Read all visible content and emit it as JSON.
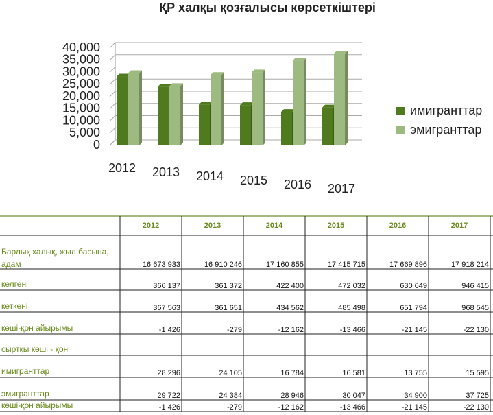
{
  "chart_data": {
    "type": "bar",
    "title": "ҚР халқы қозғалысы көрсеткіштері",
    "categories": [
      "2012",
      "2013",
      "2014",
      "2015",
      "2016",
      "2017"
    ],
    "series": [
      {
        "name": "имигранттар",
        "color": "#4f7a1e",
        "values": [
          28296,
          24105,
          16784,
          16581,
          13755,
          15595
        ]
      },
      {
        "name": "эмигранттар",
        "color": "#9dbb80",
        "values": [
          29722,
          24384,
          28946,
          30047,
          34900,
          37725
        ]
      }
    ],
    "ylim": [
      0,
      40000
    ],
    "yticks": [
      0,
      {
        "value": 5000,
        "label": "5,000"
      },
      {
        "value": 10000,
        "label": "10,000"
      },
      {
        "value": 15000,
        "label": "15,000"
      },
      {
        "value": 20000,
        "label": "20,000"
      },
      {
        "value": 25000,
        "label": "25,000"
      },
      {
        "value": 30000,
        "label": "30,000"
      },
      {
        "value": 35000,
        "label": "35,000"
      },
      {
        "value": 40000,
        "label": "40,000"
      }
    ],
    "grid": true,
    "legend": "right"
  },
  "table": {
    "header": [
      "2012",
      "2013",
      "2014",
      "2015",
      "2016",
      "2017"
    ],
    "rows": [
      {
        "label": "Барлық халық, жыл басына, адам",
        "values": [
          "16 673 933",
          "16 910 246",
          "17 160 855",
          "17 415 715",
          "17 669 896",
          "17 918 214"
        ]
      },
      {
        "label": "келгені",
        "values": [
          "366 137",
          "361 372",
          "422 400",
          "472 032",
          "630 649",
          "946 415"
        ]
      },
      {
        "label": "кеткені",
        "values": [
          "367 563",
          "361 651",
          "434 562",
          "485 498",
          "651 794",
          "968 545"
        ]
      },
      {
        "label": "көші-қон айырымы",
        "values": [
          "-1 426",
          "-279",
          "-12 162",
          "-13 466",
          "-21 145",
          "-22 130"
        ]
      },
      {
        "label": "сыртқы көші - қон"
      },
      {
        "label": "имигранттар",
        "values": [
          "28 296",
          "24 105",
          "16 784",
          "16 581",
          "13 755",
          "15 595"
        ]
      },
      {
        "label": "эмигранттар",
        "values": [
          "29 722",
          "24 384",
          "28 946",
          "30 047",
          "34 900",
          "37 725"
        ]
      },
      {
        "label": "көші-қон айырымы",
        "values": [
          "-1 426",
          "-279",
          "-12 162",
          "-13 466",
          "-21 145",
          "-22 130"
        ]
      }
    ]
  }
}
